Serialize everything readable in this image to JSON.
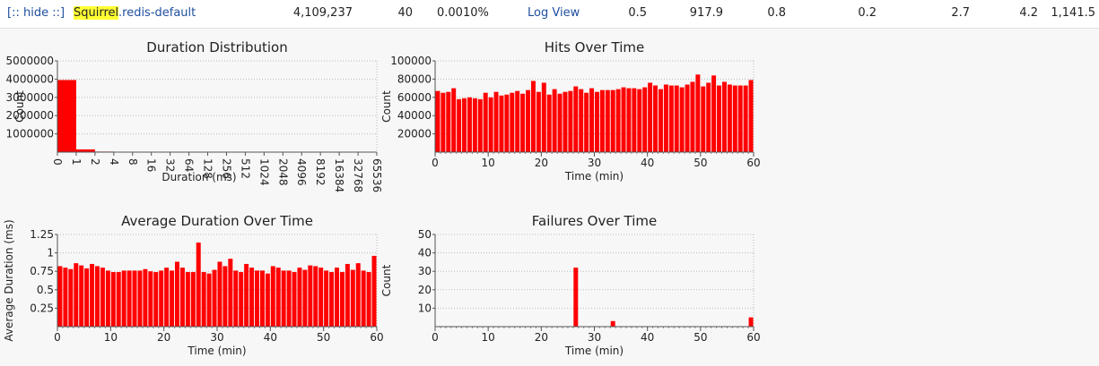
{
  "header_row": {
    "toggle": "[:: hide ::]",
    "name_highlight": "Squirrel",
    "name_rest": ".redis-default",
    "count": "4,109,237",
    "failures": "40",
    "failure_rate": "0.0010%",
    "link": "Log View",
    "stats": [
      "0.5",
      "917.9",
      "0.8",
      "0.2",
      "2.7",
      "4.2",
      "1,141.5"
    ]
  },
  "chart_data": [
    {
      "type": "histogram",
      "title": "Duration Distribution",
      "x_label": "Duration (ms)",
      "y_label": "Count",
      "color": "#ff0000",
      "grid": true,
      "bins": [
        0,
        1,
        2,
        4,
        8,
        16,
        32,
        64,
        128,
        256,
        512,
        1024,
        2048,
        4096,
        8192,
        16384,
        32768,
        65536
      ],
      "values": [
        3950000,
        150000,
        30000,
        15000,
        10000,
        8000,
        6000,
        4000,
        3000,
        2000,
        0,
        0,
        0,
        0,
        0,
        0,
        0
      ],
      "ylim": [
        0,
        5000000
      ],
      "yticks": [
        1000000,
        2000000,
        3000000,
        4000000,
        5000000
      ]
    },
    {
      "type": "bar",
      "title": "Hits Over Time",
      "x_label": "Time (min)",
      "y_label": "Count",
      "color": "#ff0000",
      "grid": true,
      "x": [
        0,
        1,
        2,
        3,
        4,
        5,
        6,
        7,
        8,
        9,
        10,
        11,
        12,
        13,
        14,
        15,
        16,
        17,
        18,
        19,
        20,
        21,
        22,
        23,
        24,
        25,
        26,
        27,
        28,
        29,
        30,
        31,
        32,
        33,
        34,
        35,
        36,
        37,
        38,
        39,
        40,
        41,
        42,
        43,
        44,
        45,
        46,
        47,
        48,
        49,
        50,
        51,
        52,
        53,
        54,
        55,
        56,
        57,
        58,
        59
      ],
      "values": [
        67000,
        65000,
        66000,
        70000,
        58000,
        59000,
        60000,
        59000,
        58000,
        65000,
        60000,
        66000,
        62000,
        63000,
        65000,
        67000,
        64000,
        68000,
        78000,
        66000,
        76000,
        63000,
        69000,
        64000,
        66000,
        67000,
        72000,
        69000,
        65000,
        70000,
        66000,
        68000,
        68000,
        68000,
        69000,
        71000,
        70000,
        70000,
        69000,
        71000,
        76000,
        73000,
        69000,
        74000,
        73000,
        73000,
        71000,
        74000,
        77000,
        85000,
        72000,
        76000,
        84000,
        73000,
        77000,
        74000,
        73000,
        73000,
        73000,
        79000
      ],
      "xlim": [
        0,
        60
      ],
      "xticks": [
        0,
        10,
        20,
        30,
        40,
        50,
        60
      ],
      "ylim": [
        0,
        100000
      ],
      "yticks": [
        20000,
        40000,
        60000,
        80000,
        100000
      ]
    },
    {
      "type": "bar",
      "title": "Average Duration Over Time",
      "x_label": "Time (min)",
      "y_label": "Average Duration (ms)",
      "color": "#ff0000",
      "grid": true,
      "x": [
        0,
        1,
        2,
        3,
        4,
        5,
        6,
        7,
        8,
        9,
        10,
        11,
        12,
        13,
        14,
        15,
        16,
        17,
        18,
        19,
        20,
        21,
        22,
        23,
        24,
        25,
        26,
        27,
        28,
        29,
        30,
        31,
        32,
        33,
        34,
        35,
        36,
        37,
        38,
        39,
        40,
        41,
        42,
        43,
        44,
        45,
        46,
        47,
        48,
        49,
        50,
        51,
        52,
        53,
        54,
        55,
        56,
        57,
        58,
        59
      ],
      "values": [
        0.82,
        0.8,
        0.78,
        0.86,
        0.83,
        0.79,
        0.85,
        0.82,
        0.8,
        0.76,
        0.74,
        0.74,
        0.76,
        0.76,
        0.76,
        0.76,
        0.78,
        0.75,
        0.74,
        0.76,
        0.8,
        0.76,
        0.88,
        0.8,
        0.74,
        0.74,
        1.14,
        0.74,
        0.72,
        0.77,
        0.88,
        0.82,
        0.92,
        0.76,
        0.74,
        0.85,
        0.8,
        0.76,
        0.76,
        0.72,
        0.82,
        0.8,
        0.76,
        0.76,
        0.74,
        0.8,
        0.77,
        0.83,
        0.82,
        0.8,
        0.76,
        0.74,
        0.8,
        0.74,
        0.85,
        0.77,
        0.86,
        0.76,
        0.74,
        0.96
      ],
      "xlim": [
        0,
        60
      ],
      "xticks": [
        0,
        10,
        20,
        30,
        40,
        50,
        60
      ],
      "ylim": [
        0,
        1.25
      ],
      "yticks": [
        0.25,
        0.5,
        0.75,
        1,
        1.25
      ]
    },
    {
      "type": "bar",
      "title": "Failures Over Time",
      "x_label": "Time (min)",
      "y_label": "Count",
      "color": "#ff0000",
      "grid": true,
      "x": [
        0,
        1,
        2,
        3,
        4,
        5,
        6,
        7,
        8,
        9,
        10,
        11,
        12,
        13,
        14,
        15,
        16,
        17,
        18,
        19,
        20,
        21,
        22,
        23,
        24,
        25,
        26,
        27,
        28,
        29,
        30,
        31,
        32,
        33,
        34,
        35,
        36,
        37,
        38,
        39,
        40,
        41,
        42,
        43,
        44,
        45,
        46,
        47,
        48,
        49,
        50,
        51,
        52,
        53,
        54,
        55,
        56,
        57,
        58,
        59
      ],
      "values": [
        0,
        0,
        0,
        0,
        0,
        0,
        0,
        0,
        0,
        0,
        0,
        0,
        0,
        0,
        0,
        0,
        0,
        0,
        0,
        0,
        0,
        0,
        0,
        0,
        0,
        0,
        32,
        0,
        0,
        0,
        0,
        0,
        0,
        3,
        0,
        0,
        0,
        0,
        0,
        0,
        0,
        0,
        0,
        0,
        0,
        0,
        0,
        0,
        0,
        0,
        0,
        0,
        0,
        0,
        0,
        0,
        0,
        0,
        0,
        5
      ],
      "xlim": [
        0,
        60
      ],
      "xticks": [
        0,
        10,
        20,
        30,
        40,
        50,
        60
      ],
      "ylim": [
        0,
        50
      ],
      "yticks": [
        10,
        20,
        30,
        40,
        50
      ]
    }
  ]
}
